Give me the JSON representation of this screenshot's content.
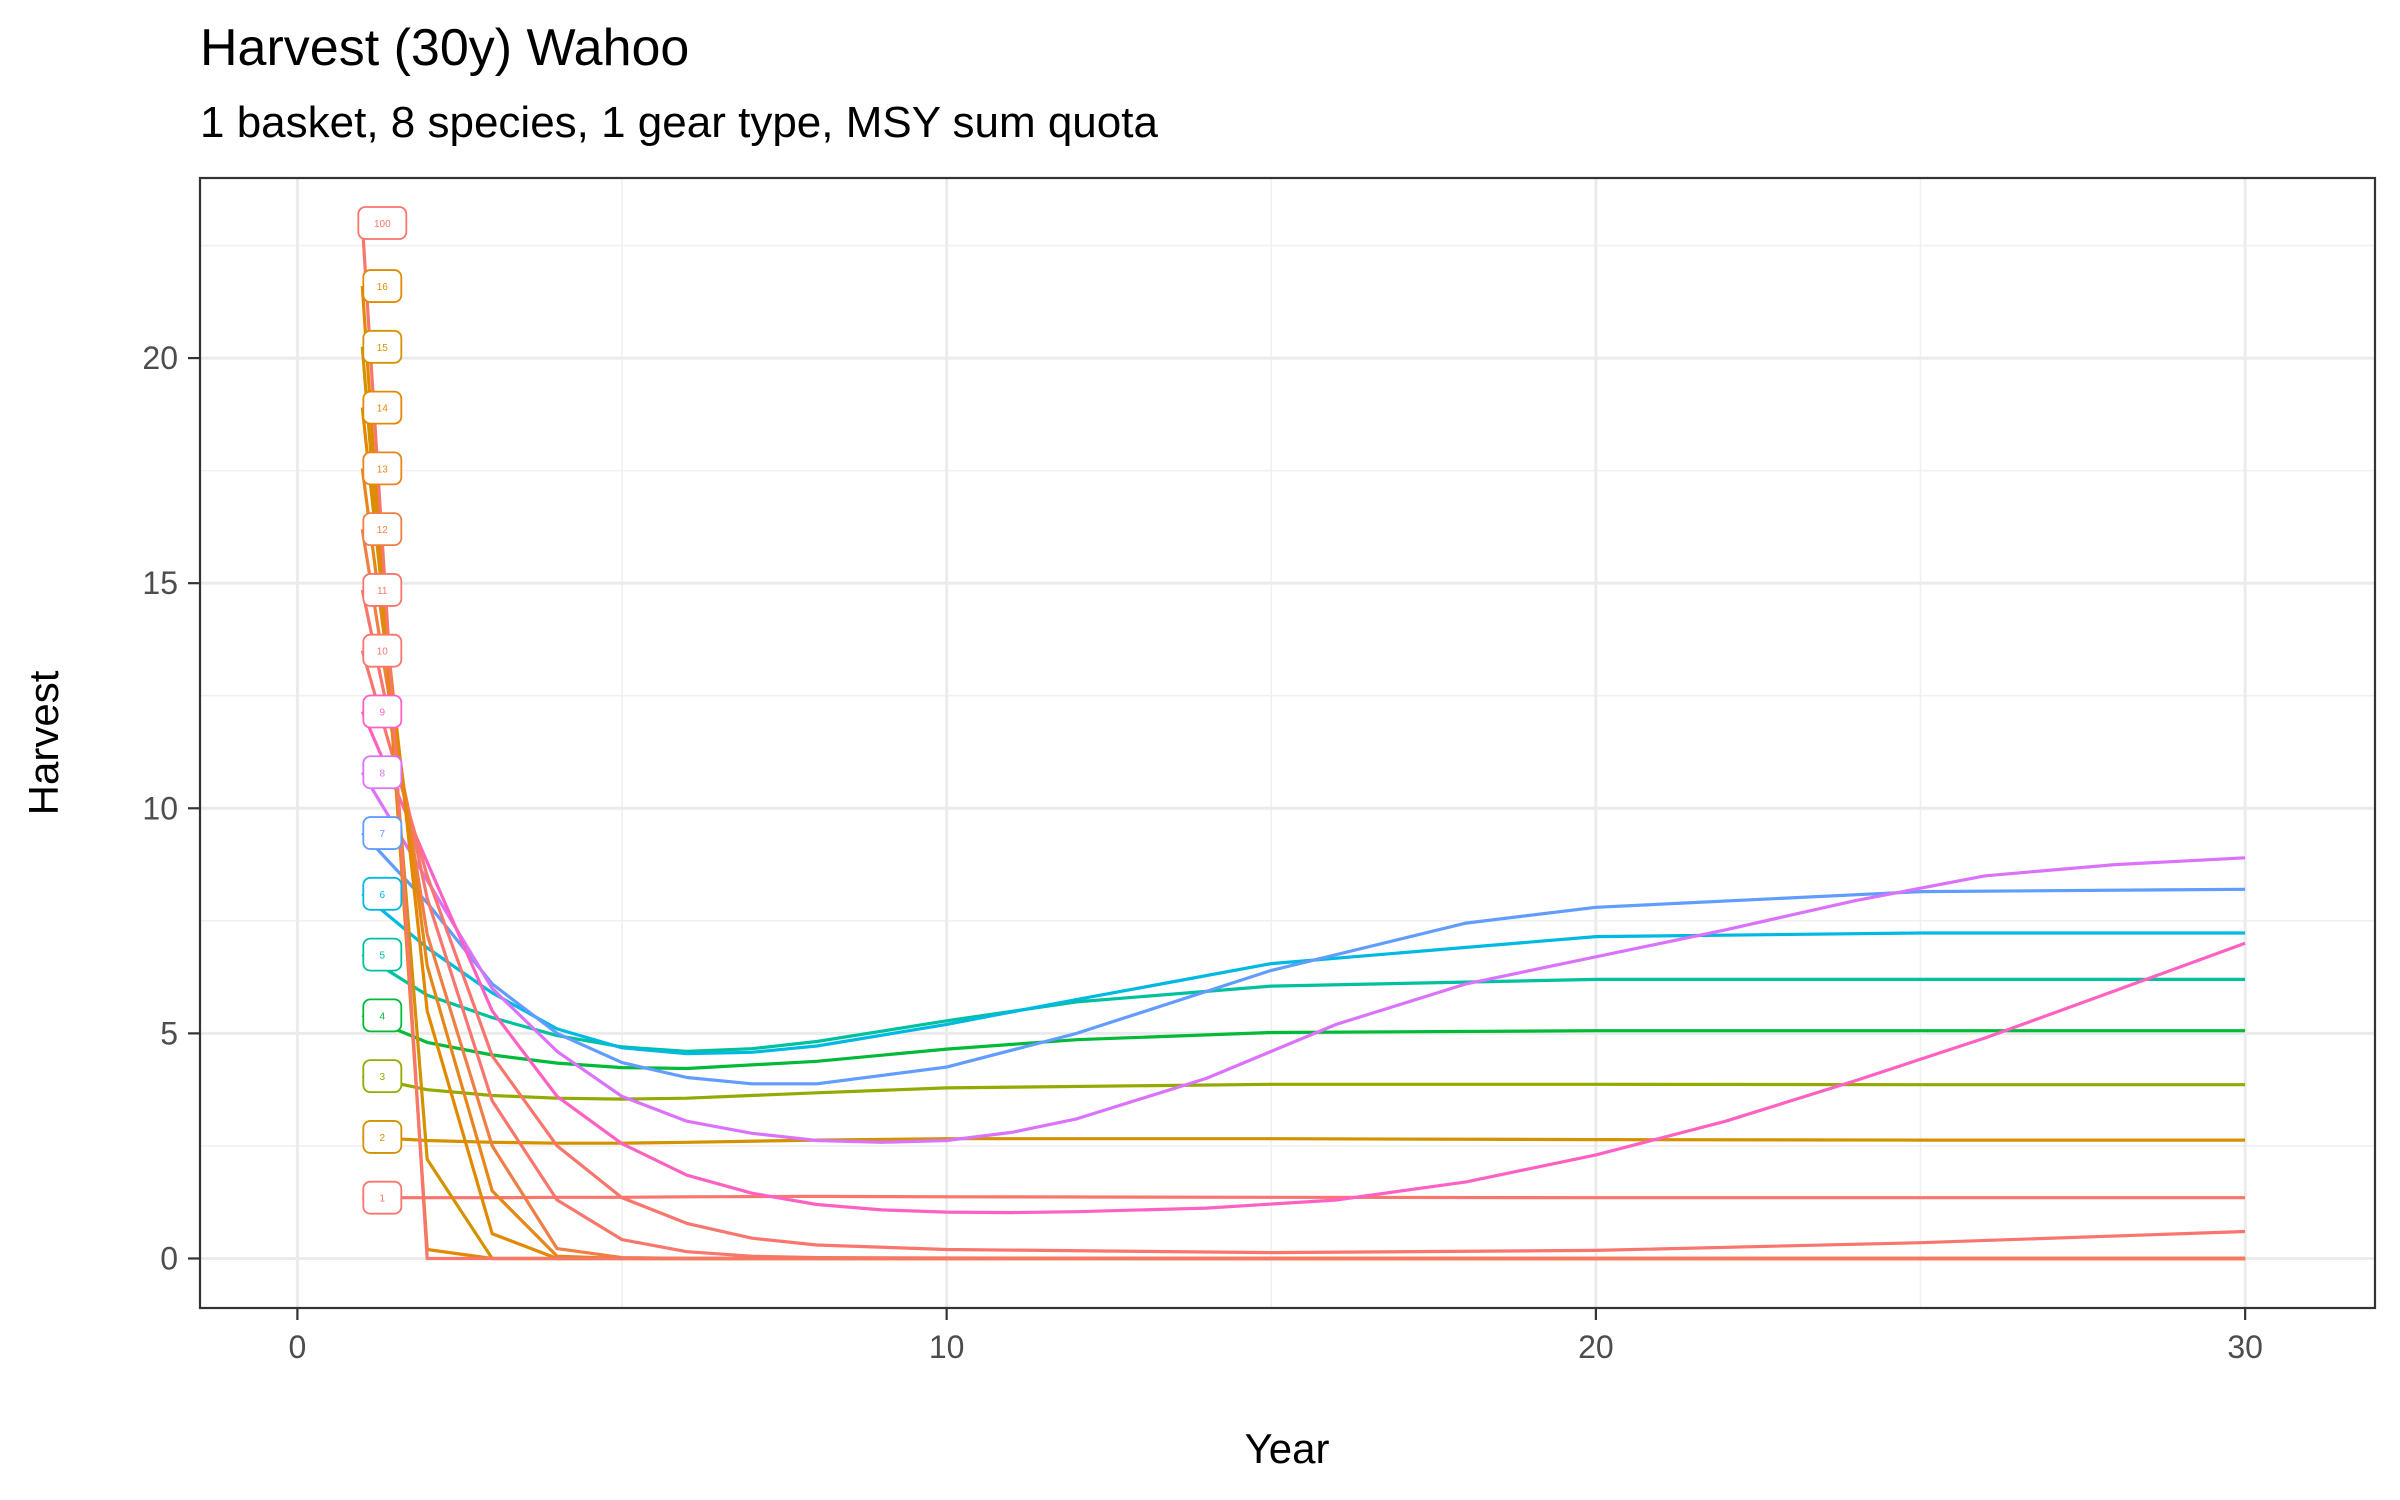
{
  "chart_data": {
    "type": "line",
    "title": "Harvest (30y) Wahoo",
    "subtitle": "1 basket, 8 species, 1 gear type, MSY sum quota",
    "xlabel": "Year",
    "ylabel": "Harvest",
    "xlim": [
      -1.5,
      32
    ],
    "ylim": [
      -1.1,
      24.0
    ],
    "x_ticks": [
      0,
      10,
      20,
      30
    ],
    "y_ticks": [
      0,
      5,
      10,
      15,
      20
    ],
    "grid": true,
    "legend": "none",
    "series": [
      {
        "name": "1",
        "color": "#F8766D",
        "x": [
          1,
          2,
          3,
          4,
          5,
          6,
          8,
          10,
          15,
          20,
          25,
          30
        ],
        "y": [
          1.35,
          1.35,
          1.35,
          1.36,
          1.36,
          1.37,
          1.38,
          1.37,
          1.36,
          1.35,
          1.35,
          1.35
        ]
      },
      {
        "name": "2",
        "color": "#D39200",
        "x": [
          1,
          2,
          3,
          4,
          5,
          6,
          8,
          10,
          15,
          20,
          25,
          30
        ],
        "y": [
          2.7,
          2.62,
          2.58,
          2.56,
          2.56,
          2.58,
          2.63,
          2.66,
          2.66,
          2.64,
          2.63,
          2.63
        ]
      },
      {
        "name": "3",
        "color": "#93AA00",
        "x": [
          1,
          2,
          3,
          4,
          5,
          6,
          8,
          10,
          15,
          20,
          25,
          30
        ],
        "y": [
          4.05,
          3.75,
          3.62,
          3.56,
          3.54,
          3.56,
          3.68,
          3.79,
          3.87,
          3.87,
          3.86,
          3.86
        ]
      },
      {
        "name": "4",
        "color": "#00BA38",
        "x": [
          1,
          2,
          3,
          4,
          5,
          6,
          8,
          10,
          12,
          15,
          20,
          25,
          30
        ],
        "y": [
          5.4,
          4.8,
          4.52,
          4.34,
          4.24,
          4.22,
          4.38,
          4.65,
          4.86,
          5.02,
          5.06,
          5.06,
          5.06
        ]
      },
      {
        "name": "5",
        "color": "#00C19F",
        "x": [
          1,
          2,
          3,
          4,
          5,
          6,
          7,
          8,
          10,
          12,
          15,
          20,
          25,
          30
        ],
        "y": [
          6.75,
          5.85,
          5.35,
          4.95,
          4.7,
          4.6,
          4.66,
          4.82,
          5.28,
          5.7,
          6.05,
          6.2,
          6.2,
          6.2
        ]
      },
      {
        "name": "6",
        "color": "#00B9E3",
        "x": [
          1,
          2,
          3,
          4,
          5,
          6,
          7,
          8,
          10,
          12,
          15,
          20,
          25,
          30
        ],
        "y": [
          8.1,
          6.9,
          5.9,
          5.1,
          4.68,
          4.55,
          4.58,
          4.72,
          5.2,
          5.75,
          6.55,
          7.15,
          7.23,
          7.23
        ]
      },
      {
        "name": "7",
        "color": "#619CFF",
        "x": [
          1,
          2,
          3,
          4,
          5,
          6,
          7,
          8,
          10,
          12,
          15,
          18,
          20,
          25,
          30
        ],
        "y": [
          9.45,
          7.9,
          6.1,
          5.0,
          4.35,
          4.02,
          3.88,
          3.88,
          4.25,
          5.0,
          6.4,
          7.45,
          7.8,
          8.15,
          8.2
        ]
      },
      {
        "name": "8",
        "color": "#DB72FB",
        "x": [
          1,
          2,
          3,
          4,
          5,
          6,
          7,
          8,
          9,
          10,
          11,
          12,
          14,
          16,
          18,
          20,
          22,
          24,
          26,
          28,
          30
        ],
        "y": [
          10.8,
          8.4,
          6.0,
          4.6,
          3.6,
          3.05,
          2.78,
          2.62,
          2.58,
          2.62,
          2.8,
          3.1,
          4.0,
          5.2,
          6.1,
          6.7,
          7.3,
          7.95,
          8.5,
          8.75,
          8.9
        ]
      },
      {
        "name": "9",
        "color": "#FF61C3",
        "x": [
          1,
          2,
          3,
          4,
          5,
          6,
          7,
          8,
          9,
          10,
          11,
          12,
          14,
          16,
          18,
          20,
          22,
          24,
          26,
          28,
          30
        ],
        "y": [
          12.15,
          8.8,
          5.5,
          3.6,
          2.55,
          1.85,
          1.45,
          1.2,
          1.08,
          1.03,
          1.02,
          1.04,
          1.12,
          1.3,
          1.7,
          2.3,
          3.05,
          3.95,
          4.9,
          5.95,
          7.0
        ]
      },
      {
        "name": "10",
        "color": "#F8766D",
        "x": [
          1,
          2,
          3,
          4,
          5,
          6,
          7,
          8,
          10,
          15,
          20,
          25,
          30
        ],
        "y": [
          13.5,
          8.5,
          4.5,
          2.5,
          1.35,
          0.78,
          0.45,
          0.3,
          0.2,
          0.13,
          0.18,
          0.35,
          0.6
        ]
      },
      {
        "name": "11",
        "color": "#F8766D",
        "x": [
          1,
          2,
          3,
          4,
          5,
          6,
          7,
          8,
          10,
          15,
          20,
          30
        ],
        "y": [
          14.85,
          8.0,
          3.5,
          1.3,
          0.42,
          0.15,
          0.05,
          0.02,
          0.01,
          0.0,
          0.0,
          0.0
        ]
      },
      {
        "name": "12",
        "color": "#EF7F45",
        "x": [
          1,
          2,
          3,
          4,
          5,
          6,
          8,
          10,
          30
        ],
        "y": [
          16.2,
          7.2,
          2.5,
          0.22,
          0.02,
          0.0,
          0.0,
          0.0,
          0.0
        ]
      },
      {
        "name": "13",
        "color": "#E7861B",
        "x": [
          1,
          2,
          3,
          4,
          5,
          30
        ],
        "y": [
          17.55,
          6.5,
          1.5,
          0.05,
          0.0,
          0.0
        ]
      },
      {
        "name": "14",
        "color": "#E38900",
        "x": [
          1,
          2,
          3,
          4,
          30
        ],
        "y": [
          18.9,
          5.5,
          0.55,
          0.0,
          0.0
        ]
      },
      {
        "name": "15",
        "color": "#D39200",
        "x": [
          1,
          2,
          3,
          30
        ],
        "y": [
          20.25,
          2.2,
          0.0,
          0.0
        ]
      },
      {
        "name": "16",
        "color": "#E38900",
        "x": [
          1,
          2,
          3,
          30
        ],
        "y": [
          21.6,
          0.2,
          0.0,
          0.0
        ]
      },
      {
        "name": "100",
        "color": "#F8766D",
        "x": [
          1,
          2,
          30
        ],
        "y": [
          23.0,
          0.0,
          0.0
        ]
      }
    ]
  }
}
